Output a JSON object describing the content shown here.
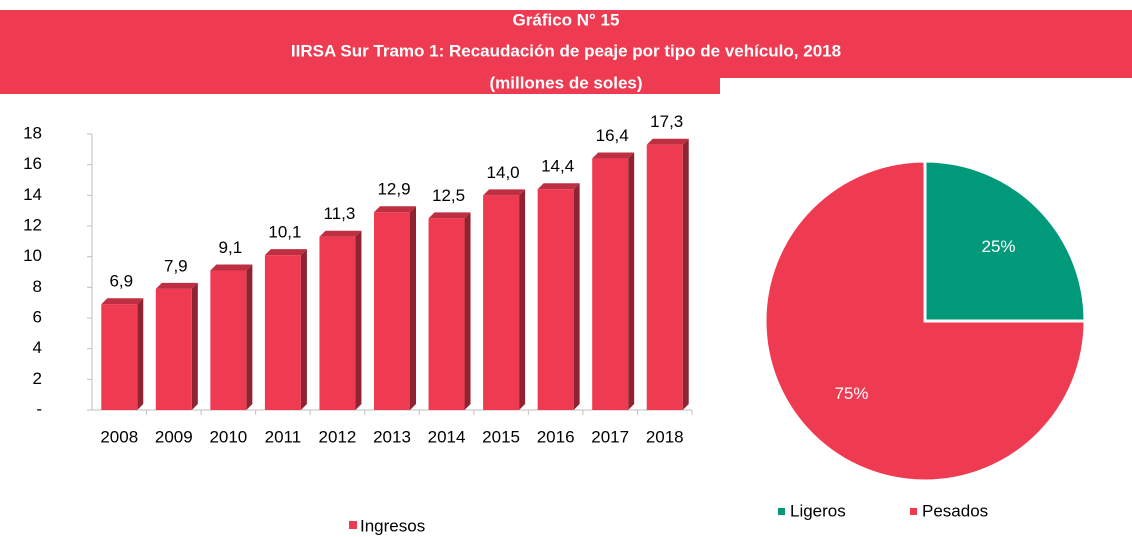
{
  "header": {
    "lines": [
      "Gráfico N° 15",
      "IIRSA Sur Tramo 1: Recaudación de peaje por tipo de vehículo, 2018",
      "(millones de soles)"
    ]
  },
  "chart_data": [
    {
      "type": "bar",
      "categories": [
        "2008",
        "2009",
        "2010",
        "2011",
        "2012",
        "2013",
        "2014",
        "2015",
        "2016",
        "2017",
        "2018"
      ],
      "series": [
        {
          "name": "Ingresos",
          "color": "#ef3b52",
          "values": [
            6.9,
            7.9,
            9.1,
            10.1,
            11.3,
            12.9,
            12.5,
            14.0,
            14.4,
            16.4,
            17.3
          ],
          "value_labels": [
            "6,9",
            "7,9",
            "9,1",
            "10,1",
            "11,3",
            "12,9",
            "12,5",
            "14,0",
            "14,4",
            "16,4",
            "17,3"
          ]
        }
      ],
      "ylim": [
        0,
        18
      ],
      "yticks": [
        {
          "value": 0,
          "label": "-"
        },
        2,
        4,
        6,
        8,
        10,
        12,
        14,
        16,
        18
      ],
      "legend": "bottom"
    },
    {
      "type": "pie",
      "categories": [
        "Ligeros",
        "Pesados"
      ],
      "values": [
        25,
        75
      ],
      "value_labels": [
        "25%",
        "75%"
      ],
      "colors": [
        "#009a7a",
        "#ef3b52"
      ],
      "legend": "bottom"
    }
  ]
}
